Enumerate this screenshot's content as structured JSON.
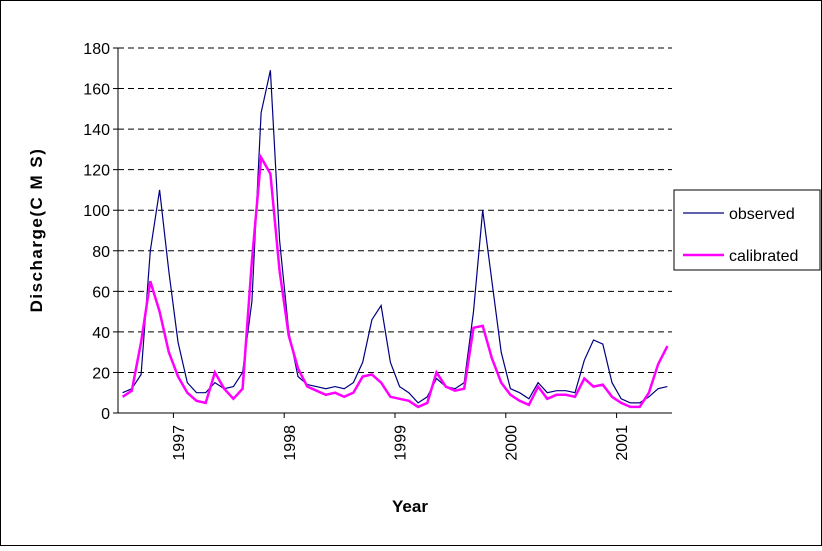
{
  "chart_data": {
    "type": "line",
    "x_label": "Year",
    "y_label": "Discharge(C M S)",
    "categories": [
      null,
      null,
      null,
      null,
      null,
      null,
      "1997",
      null,
      null,
      null,
      null,
      null,
      null,
      null,
      null,
      null,
      null,
      null,
      "1998",
      null,
      null,
      null,
      null,
      null,
      null,
      null,
      null,
      null,
      null,
      null,
      "1999",
      null,
      null,
      null,
      null,
      null,
      null,
      null,
      null,
      null,
      null,
      null,
      "2000",
      null,
      null,
      null,
      null,
      null,
      null,
      null,
      null,
      null,
      null,
      null,
      "2001",
      null,
      null,
      null,
      null,
      null
    ],
    "series": [
      {
        "name": "observed",
        "color": "#000080",
        "width": 1.2,
        "values": [
          10,
          12,
          19,
          80,
          110,
          70,
          35,
          15,
          10,
          10,
          15,
          12,
          13,
          20,
          55,
          148,
          169,
          85,
          40,
          18,
          14,
          13,
          12,
          13,
          12,
          15,
          25,
          46,
          53,
          25,
          13,
          10,
          5,
          8,
          17,
          13,
          12,
          15,
          50,
          100,
          65,
          30,
          12,
          10,
          7,
          15,
          10,
          11,
          11,
          10,
          26,
          36,
          34,
          15,
          7,
          5,
          5,
          8,
          12,
          13
        ]
      },
      {
        "name": "calibrated",
        "color": "#ff00ff",
        "width": 2.5,
        "values": [
          8,
          11,
          35,
          65,
          50,
          30,
          18,
          10,
          6,
          5,
          20,
          12,
          7,
          12,
          75,
          126,
          118,
          70,
          38,
          22,
          13,
          11,
          9,
          10,
          8,
          10,
          18,
          19,
          15,
          8,
          7,
          6,
          3,
          5,
          20,
          13,
          11,
          12,
          42,
          43,
          27,
          15,
          9,
          6,
          4,
          13,
          7,
          9,
          9,
          8,
          17,
          13,
          14,
          8,
          5,
          3,
          3,
          10,
          24,
          33
        ]
      }
    ],
    "ylim": [
      0,
      180
    ],
    "yticks": [
      0,
      20,
      40,
      60,
      80,
      100,
      120,
      140,
      160,
      180
    ],
    "grid": true,
    "legend": "right"
  }
}
